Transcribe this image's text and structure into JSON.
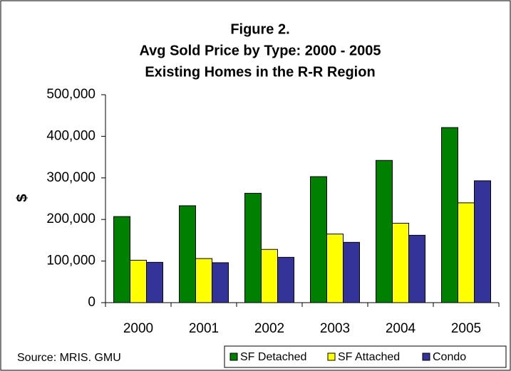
{
  "chart_data": {
    "type": "bar",
    "title": [
      "Figure 2.",
      "Avg Sold Price by Type: 2000 - 2005",
      "Existing Homes in the R-R Region"
    ],
    "ylabel": "$",
    "source": "Source: MRIS. GMU",
    "categories": [
      "2000",
      "2001",
      "2002",
      "2003",
      "2004",
      "2005"
    ],
    "series": [
      {
        "name": "SF Detached",
        "color": "#008000",
        "values": [
          207000,
          233000,
          263000,
          303000,
          342000,
          421000
        ]
      },
      {
        "name": "SF Attached",
        "color": "#ffff00",
        "values": [
          102000,
          106000,
          128000,
          165000,
          191000,
          240000
        ]
      },
      {
        "name": "Condo",
        "color": "#333399",
        "values": [
          97000,
          96000,
          109000,
          145000,
          162000,
          293000
        ]
      }
    ],
    "ylim": [
      0,
      500000
    ],
    "yticks": [
      0,
      {
        "value": 100000,
        "label": "100,000"
      },
      {
        "value": 200000,
        "label": "200,000"
      },
      {
        "value": 300000,
        "label": "300,000"
      },
      {
        "value": 400000,
        "label": "400,000"
      },
      {
        "value": 500000,
        "label": "500,000"
      }
    ],
    "grid": false,
    "legend": "bottom-right"
  }
}
